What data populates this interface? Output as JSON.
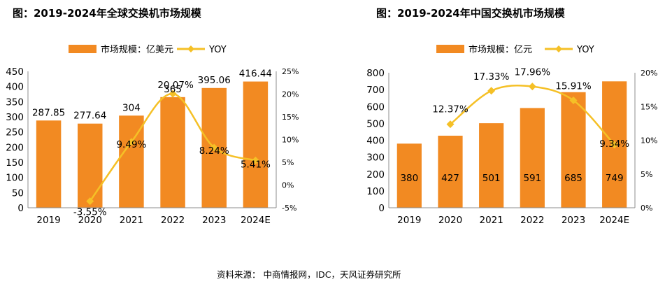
{
  "source": "资料来源：  中商情报网，IDC，天风证券研究所",
  "chart_data": [
    {
      "type": "bar",
      "title": "图：2019-2024年全球交换机市场规模",
      "categories": [
        "2019",
        "2020",
        "2021",
        "2022",
        "2023",
        "2024E"
      ],
      "series": [
        {
          "name": "市场规模：亿美元",
          "type": "bar",
          "color": "#F28A22",
          "values": [
            287.85,
            277.64,
            304,
            365,
            395.06,
            416.44
          ],
          "labels": [
            "287.85",
            "277.64",
            "304",
            "365",
            "395.06",
            "416.44"
          ]
        },
        {
          "name": "YOY",
          "type": "line",
          "axis": "right",
          "color": "#F5C026",
          "values": [
            null,
            -3.55,
            9.49,
            20.07,
            8.24,
            5.41
          ],
          "labels": [
            "",
            "-3.55%",
            "9.49%",
            "20.07%",
            "8.24%",
            "5.41%"
          ]
        }
      ],
      "y_left": {
        "min": 0,
        "max": 450,
        "step": 50,
        "ticks": [
          "0",
          "50",
          "100",
          "150",
          "200",
          "250",
          "300",
          "350",
          "400",
          "450"
        ]
      },
      "y_right": {
        "min": -5,
        "max": 25,
        "step": 5,
        "ticks": [
          "-5%",
          "0%",
          "5%",
          "10%",
          "15%",
          "20%",
          "25%"
        ]
      },
      "legend": "top-center",
      "grid": false
    },
    {
      "type": "bar",
      "title": "图：2019-2024年中国交换机市场规模",
      "categories": [
        "2019",
        "2020",
        "2021",
        "2022",
        "2023",
        "2024E"
      ],
      "series": [
        {
          "name": "市场规模：亿元",
          "type": "bar",
          "color": "#F28A22",
          "values": [
            380,
            427,
            501,
            591,
            685,
            749
          ],
          "labels": [
            "380",
            "427",
            "501",
            "591",
            "685",
            "749"
          ]
        },
        {
          "name": "YOY",
          "type": "line",
          "axis": "right",
          "color": "#F5C026",
          "values": [
            null,
            12.37,
            17.33,
            17.96,
            15.91,
            9.34
          ],
          "labels": [
            "",
            "12.37%",
            "17.33%",
            "17.96%",
            "15.91%",
            "9.34%"
          ]
        }
      ],
      "y_left": {
        "min": 0,
        "max": 800,
        "step": 100,
        "ticks": [
          "0",
          "100",
          "200",
          "300",
          "400",
          "500",
          "600",
          "700",
          "800"
        ]
      },
      "y_right": {
        "min": 0,
        "max": 20,
        "step": 5,
        "ticks": [
          "0%",
          "5%",
          "10%",
          "15%",
          "20%"
        ]
      },
      "legend": "top-center",
      "grid": false
    }
  ]
}
